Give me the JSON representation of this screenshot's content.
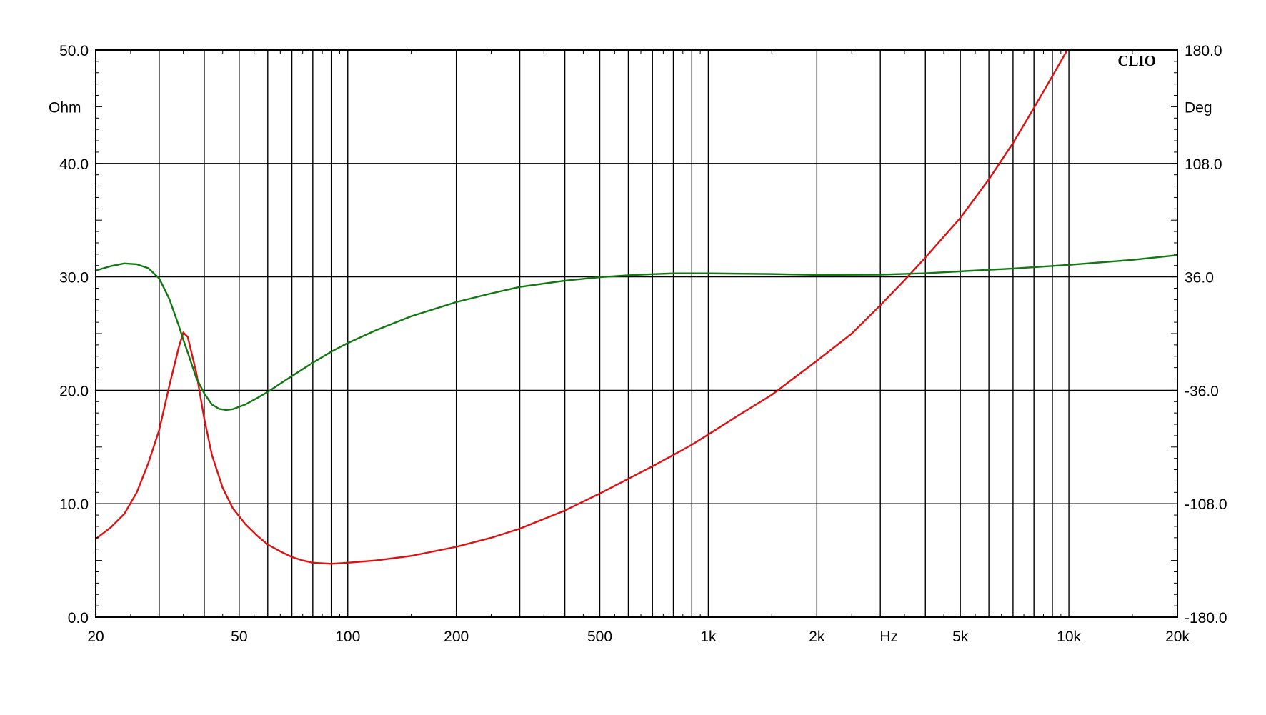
{
  "chart_data": {
    "type": "line",
    "brand": "CLIO",
    "x_axis": {
      "scale": "log",
      "range": [
        20,
        20000
      ],
      "label": "Hz",
      "tick_labels": [
        {
          "value": 20,
          "text": "20"
        },
        {
          "value": 50,
          "text": "50"
        },
        {
          "value": 100,
          "text": "100"
        },
        {
          "value": 200,
          "text": "200"
        },
        {
          "value": 500,
          "text": "500"
        },
        {
          "value": 1000,
          "text": "1k"
        },
        {
          "value": 2000,
          "text": "2k"
        },
        {
          "value": 5000,
          "text": "5k"
        },
        {
          "value": 10000,
          "text": "10k"
        },
        {
          "value": 20000,
          "text": "20k"
        }
      ],
      "label_value": 3000,
      "gridlines": [
        20,
        30,
        40,
        50,
        60,
        70,
        80,
        90,
        100,
        200,
        300,
        400,
        500,
        600,
        700,
        800,
        900,
        1000,
        2000,
        3000,
        4000,
        5000,
        6000,
        7000,
        8000,
        9000,
        10000,
        20000
      ]
    },
    "y_left": {
      "unit": "Ohm",
      "range": [
        0,
        50
      ],
      "tick_labels": [
        "0.0",
        "10.0",
        "20.0",
        "30.0",
        "40.0",
        "50.0"
      ],
      "ticks": [
        0,
        10,
        20,
        30,
        40,
        50
      ]
    },
    "y_right": {
      "unit": "Deg",
      "range": [
        -180,
        180
      ],
      "tick_labels": [
        "-180.0",
        "-108.0",
        "-36.0",
        "36.0",
        "108.0",
        "180.0"
      ],
      "ticks": [
        -180,
        -108,
        -36,
        36,
        108,
        180
      ]
    },
    "grid": true,
    "series": [
      {
        "axis": "left",
        "color": "#dd1111",
        "points": [
          [
            20,
            6.9
          ],
          [
            22,
            7.9
          ],
          [
            24,
            9.1
          ],
          [
            26,
            11.0
          ],
          [
            28,
            13.6
          ],
          [
            30,
            16.5
          ],
          [
            32,
            20.4
          ],
          [
            34,
            23.8
          ],
          [
            35,
            25.1
          ],
          [
            36,
            24.7
          ],
          [
            38,
            21.6
          ],
          [
            40,
            17.5
          ],
          [
            42,
            14.3
          ],
          [
            45,
            11.4
          ],
          [
            48,
            9.6
          ],
          [
            52,
            8.2
          ],
          [
            56,
            7.2
          ],
          [
            60,
            6.4
          ],
          [
            65,
            5.8
          ],
          [
            70,
            5.3
          ],
          [
            75,
            5.0
          ],
          [
            80,
            4.8
          ],
          [
            90,
            4.7
          ],
          [
            100,
            4.8
          ],
          [
            120,
            5.0
          ],
          [
            150,
            5.4
          ],
          [
            200,
            6.2
          ],
          [
            250,
            7.0
          ],
          [
            300,
            7.8
          ],
          [
            400,
            9.4
          ],
          [
            500,
            10.9
          ],
          [
            600,
            12.2
          ],
          [
            700,
            13.3
          ],
          [
            800,
            14.3
          ],
          [
            900,
            15.2
          ],
          [
            1000,
            16.1
          ],
          [
            1200,
            17.7
          ],
          [
            1500,
            19.6
          ],
          [
            2000,
            22.6
          ],
          [
            2500,
            25.0
          ],
          [
            3000,
            27.5
          ],
          [
            3500,
            29.7
          ],
          [
            4000,
            31.7
          ],
          [
            5000,
            35.2
          ],
          [
            6000,
            38.6
          ],
          [
            7000,
            41.8
          ],
          [
            8000,
            44.9
          ],
          [
            9000,
            47.7
          ],
          [
            9900,
            50.0
          ]
        ]
      },
      {
        "axis": "right",
        "color": "#117711",
        "points": [
          [
            20,
            40.0
          ],
          [
            22,
            42.8
          ],
          [
            24,
            44.5
          ],
          [
            26,
            44.0
          ],
          [
            28,
            41.5
          ],
          [
            30,
            35.0
          ],
          [
            32,
            22.0
          ],
          [
            34,
            5.0
          ],
          [
            35,
            -4.0
          ],
          [
            36,
            -12.0
          ],
          [
            38,
            -28.0
          ],
          [
            40,
            -38.0
          ],
          [
            42,
            -45.0
          ],
          [
            44,
            -47.8
          ],
          [
            46,
            -48.5
          ],
          [
            48,
            -48.0
          ],
          [
            52,
            -45.0
          ],
          [
            56,
            -41.0
          ],
          [
            60,
            -37.0
          ],
          [
            65,
            -31.8
          ],
          [
            70,
            -27.0
          ],
          [
            80,
            -18.5
          ],
          [
            90,
            -11.5
          ],
          [
            100,
            -6.0
          ],
          [
            120,
            2.2
          ],
          [
            150,
            11.0
          ],
          [
            200,
            20.0
          ],
          [
            250,
            25.5
          ],
          [
            300,
            29.6
          ],
          [
            400,
            33.6
          ],
          [
            500,
            35.8
          ],
          [
            600,
            37.0
          ],
          [
            700,
            37.7
          ],
          [
            800,
            38.2
          ],
          [
            1000,
            38.2
          ],
          [
            1500,
            37.8
          ],
          [
            2000,
            37.2
          ],
          [
            3000,
            37.4
          ],
          [
            4000,
            38.3
          ],
          [
            5000,
            39.5
          ],
          [
            7000,
            41.3
          ],
          [
            10000,
            43.6
          ],
          [
            15000,
            46.8
          ],
          [
            20000,
            49.8
          ]
        ]
      }
    ]
  }
}
